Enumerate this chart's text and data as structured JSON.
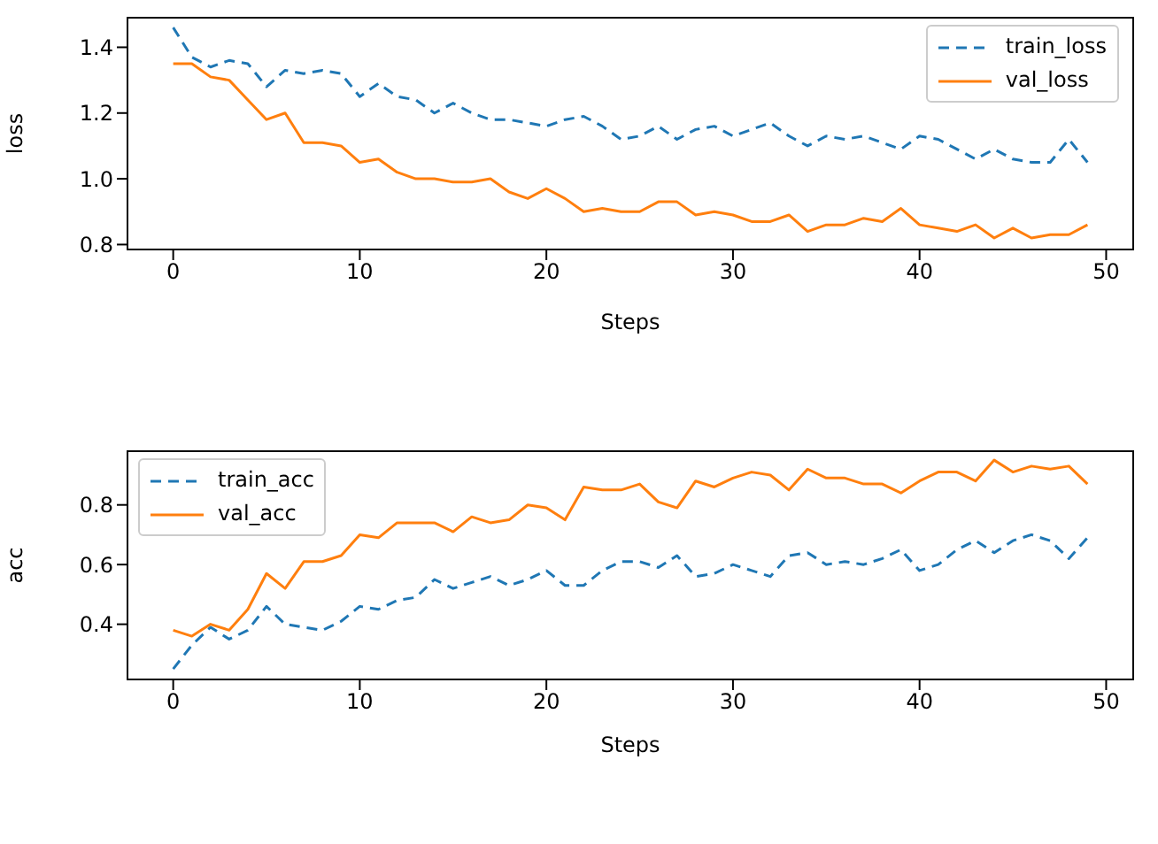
{
  "chart_data": [
    {
      "type": "line",
      "xlabel": "Steps",
      "ylabel": "loss",
      "x": [
        0,
        1,
        2,
        3,
        4,
        5,
        6,
        7,
        8,
        9,
        10,
        11,
        12,
        13,
        14,
        15,
        16,
        17,
        18,
        19,
        20,
        21,
        22,
        23,
        24,
        25,
        26,
        27,
        28,
        29,
        30,
        31,
        32,
        33,
        34,
        35,
        36,
        37,
        38,
        39,
        40,
        41,
        42,
        43,
        44,
        45,
        46,
        47,
        48,
        49
      ],
      "xlim": [
        -2.45,
        51.45
      ],
      "xticks": [
        0,
        10,
        20,
        30,
        40,
        50
      ],
      "ylim": [
        0.785,
        1.49
      ],
      "yticks": [
        0.8,
        {
          "value": 1,
          "label": "1.0"
        },
        1.2,
        1.4
      ],
      "legend": "top right",
      "marker": "none",
      "grid": false,
      "series": [
        {
          "name": "train_loss",
          "color": "#1f77b4",
          "line_style": "dashed",
          "values": [
            1.46,
            1.37,
            1.34,
            1.36,
            1.35,
            1.28,
            1.33,
            1.32,
            1.33,
            1.32,
            1.25,
            1.29,
            1.25,
            1.24,
            1.2,
            1.23,
            1.2,
            1.18,
            1.18,
            1.17,
            1.16,
            1.18,
            1.19,
            1.16,
            1.12,
            1.13,
            1.16,
            1.12,
            1.15,
            1.16,
            1.13,
            1.15,
            1.17,
            1.13,
            1.1,
            1.13,
            1.12,
            1.13,
            1.11,
            1.09,
            1.13,
            1.12,
            1.09,
            1.06,
            1.09,
            1.06,
            1.05,
            1.05,
            1.12,
            1.05
          ]
        },
        {
          "name": "val_loss",
          "color": "#ff7f0e",
          "line_style": "solid",
          "values": [
            1.35,
            1.35,
            1.31,
            1.3,
            1.24,
            1.18,
            1.2,
            1.11,
            1.11,
            1.1,
            1.05,
            1.06,
            1.02,
            1,
            1,
            0.99,
            0.99,
            1,
            0.96,
            0.94,
            0.97,
            0.94,
            0.9,
            0.91,
            0.9,
            0.9,
            0.93,
            0.93,
            0.89,
            0.9,
            0.89,
            0.87,
            0.87,
            0.89,
            0.84,
            0.86,
            0.86,
            0.88,
            0.87,
            0.91,
            0.86,
            0.85,
            0.84,
            0.86,
            0.82,
            0.85,
            0.82,
            0.83,
            0.83,
            0.86
          ]
        }
      ]
    },
    {
      "type": "line",
      "xlabel": "Steps",
      "ylabel": "acc",
      "x": [
        0,
        1,
        2,
        3,
        4,
        5,
        6,
        7,
        8,
        9,
        10,
        11,
        12,
        13,
        14,
        15,
        16,
        17,
        18,
        19,
        20,
        21,
        22,
        23,
        24,
        25,
        26,
        27,
        28,
        29,
        30,
        31,
        32,
        33,
        34,
        35,
        36,
        37,
        38,
        39,
        40,
        41,
        42,
        43,
        44,
        45,
        46,
        47,
        48,
        49
      ],
      "xlim": [
        -2.45,
        51.45
      ],
      "xticks": [
        0,
        10,
        20,
        30,
        40,
        50
      ],
      "ylim": [
        0.215,
        0.98
      ],
      "yticks": [
        0.4,
        0.6,
        0.8
      ],
      "legend": "top left",
      "marker": "none",
      "grid": false,
      "series": [
        {
          "name": "train_acc",
          "color": "#1f77b4",
          "line_style": "dashed",
          "values": [
            0.25,
            0.33,
            0.39,
            0.35,
            0.38,
            0.46,
            0.4,
            0.39,
            0.38,
            0.41,
            0.46,
            0.45,
            0.48,
            0.49,
            0.55,
            0.52,
            0.54,
            0.56,
            0.53,
            0.55,
            0.58,
            0.53,
            0.53,
            0.58,
            0.61,
            0.61,
            0.59,
            0.63,
            0.56,
            0.57,
            0.6,
            0.58,
            0.56,
            0.63,
            0.64,
            0.6,
            0.61,
            0.6,
            0.62,
            0.65,
            0.58,
            0.6,
            0.65,
            0.68,
            0.64,
            0.68,
            0.7,
            0.68,
            0.62,
            0.69
          ]
        },
        {
          "name": "val_acc",
          "color": "#ff7f0e",
          "line_style": "solid",
          "values": [
            0.38,
            0.36,
            0.4,
            0.38,
            0.45,
            0.57,
            0.52,
            0.61,
            0.61,
            0.63,
            0.7,
            0.69,
            0.74,
            0.74,
            0.74,
            0.71,
            0.76,
            0.74,
            0.75,
            0.8,
            0.79,
            0.75,
            0.86,
            0.85,
            0.85,
            0.87,
            0.81,
            0.79,
            0.88,
            0.86,
            0.89,
            0.91,
            0.9,
            0.85,
            0.92,
            0.89,
            0.89,
            0.87,
            0.87,
            0.84,
            0.88,
            0.91,
            0.91,
            0.88,
            0.95,
            0.91,
            0.93,
            0.92,
            0.93,
            0.87
          ]
        }
      ]
    }
  ]
}
